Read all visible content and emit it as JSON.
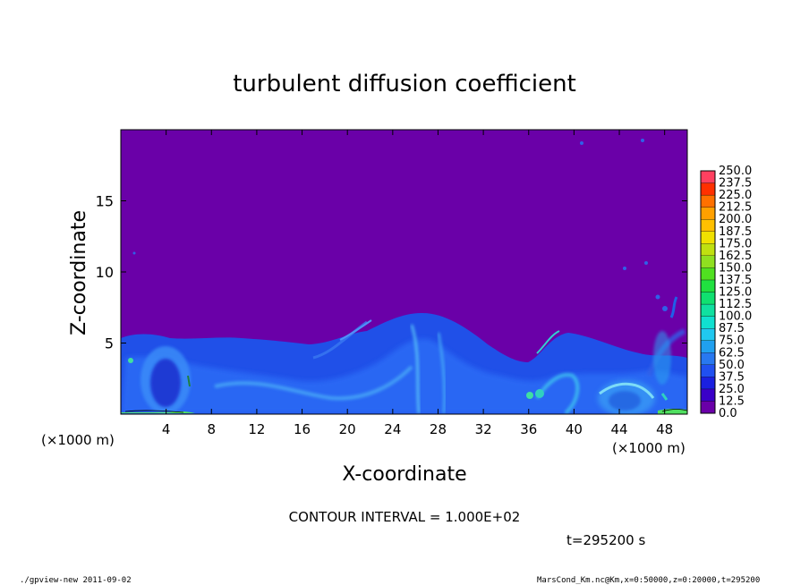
{
  "chart_data": {
    "type": "heatmap",
    "title": "turbulent diffusion coefficient",
    "xlabel": "X-coordinate",
    "ylabel": "Z-coordinate",
    "x_unit_label": "(×1000 m)",
    "y_unit_label": "(×1000 m)",
    "xlim": [
      0,
      50
    ],
    "ylim": [
      0,
      20
    ],
    "x_ticks": [
      4,
      8,
      12,
      16,
      20,
      24,
      28,
      32,
      36,
      40,
      44,
      48
    ],
    "y_ticks": [
      5,
      10,
      15
    ],
    "colorbar": {
      "levels": [
        "0.0",
        "12.5",
        "25.0",
        "37.5",
        "50.0",
        "62.5",
        "75.0",
        "87.5",
        "100.0",
        "112.5",
        "125.0",
        "137.5",
        "150.0",
        "162.5",
        "175.0",
        "187.5",
        "200.0",
        "212.5",
        "225.0",
        "237.5",
        "250.0"
      ],
      "colors": [
        "#6a00a8",
        "#3a00c8",
        "#1a20e0",
        "#2050f0",
        "#2878f0",
        "#20a0f0",
        "#20c8f0",
        "#10e0d0",
        "#10e0a0",
        "#10e070",
        "#20e040",
        "#50e020",
        "#90e020",
        "#c0e010",
        "#f0e000",
        "#ffc000",
        "#ffa000",
        "#ff7000",
        "#ff3000",
        "#ff4060",
        "#ff8090"
      ]
    },
    "background_value": "0.0",
    "contour_interval": "CONTOUR INTERVAL = 1.000E+02",
    "time_label": "t=295200 s"
  },
  "footer": {
    "left": "./gpview-new  2011-09-02",
    "right": "MarsCond_Km.nc@Km,x=0:50000,z=0:20000,t=295200"
  }
}
